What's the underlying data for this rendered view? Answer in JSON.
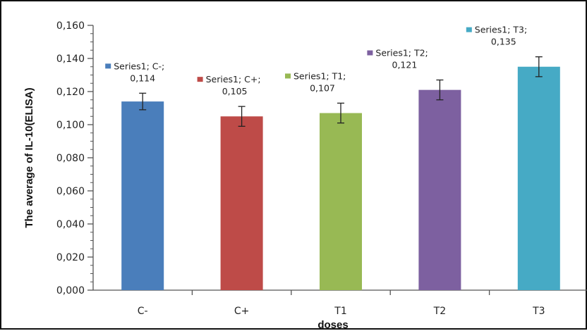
{
  "chart_data": {
    "type": "bar",
    "title": "",
    "xlabel": "doses",
    "ylabel": "The average of IL-10(ELISA)",
    "categories": [
      "C-",
      "C+",
      "T1",
      "T2",
      "T3"
    ],
    "series": [
      {
        "name": "Series1",
        "values": [
          0.114,
          0.105,
          0.107,
          0.121,
          0.135
        ],
        "errors": [
          0.005,
          0.006,
          0.006,
          0.006,
          0.006
        ],
        "colors": [
          "#4a7ebb",
          "#be4b48",
          "#98b954",
          "#7d60a0",
          "#46aac5"
        ]
      }
    ],
    "ylim": [
      0,
      0.16
    ],
    "ytick_labels": [
      "0,000",
      "0,020",
      "0,040",
      "0,060",
      "0,080",
      "0,100",
      "0,120",
      "0,140",
      "0,160"
    ],
    "data_labels": [
      {
        "line1": "Series1; C-;",
        "line2": "0,114"
      },
      {
        "line1": "Series1; C+;",
        "line2": "0,105"
      },
      {
        "line1": "Series1; T1;",
        "line2": "0,107"
      },
      {
        "line1": "Series1; T2;",
        "line2": "0,121"
      },
      {
        "line1": "Series1; T3;",
        "line2": "0,135"
      }
    ],
    "grid": false,
    "legend": "none"
  }
}
